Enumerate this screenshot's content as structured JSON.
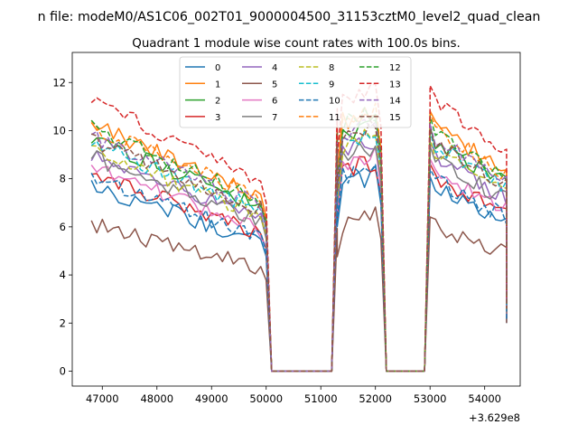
{
  "chart_data": {
    "type": "line",
    "suptitle": "n file: modeM0/AS1C06_002T01_9000004500_31153cztM0_level2_quad_clean",
    "title": "Quadrant 1 module wise count rates with 100.0s bins.",
    "xlabel": "",
    "ylabel": "",
    "x_offset_label": "+3.629e8",
    "xlim": [
      46450,
      54650
    ],
    "ylim": [
      -0.62,
      13.25
    ],
    "xticks": [
      47000,
      48000,
      49000,
      50000,
      51000,
      52000,
      53000,
      54000
    ],
    "yticks": [
      0,
      2,
      4,
      6,
      8,
      10,
      12
    ],
    "legend_position": "top-center",
    "legend_columns": 4,
    "grid": false,
    "segments": [
      {
        "start": 46800,
        "end": 49900,
        "decay": 0.3,
        "noise": 0.35
      },
      {
        "start": 50000,
        "end": 50100,
        "mode": "drop"
      },
      {
        "start": 50100,
        "end": 51200,
        "mode": "zero"
      },
      {
        "start": 51200,
        "end": 51300,
        "mode": "rise"
      },
      {
        "start": 51300,
        "end": 52000,
        "decay": -0.06,
        "noise": 0.45
      },
      {
        "start": 52100,
        "end": 52200,
        "mode": "drop"
      },
      {
        "start": 52200,
        "end": 52900,
        "mode": "zero"
      },
      {
        "start": 52900,
        "end": 53000,
        "mode": "rise"
      },
      {
        "start": 53000,
        "end": 54400,
        "decay": 0.2,
        "noise": 0.35
      }
    ],
    "series": [
      {
        "name": "0",
        "color": "#1f77b4",
        "dash": "solid",
        "level": 7.7,
        "end_value": 2.0
      },
      {
        "name": "1",
        "color": "#ff7f0e",
        "dash": "solid",
        "level": 10.3,
        "end_value": 2.3
      },
      {
        "name": "2",
        "color": "#2ca02c",
        "dash": "solid",
        "level": 9.7,
        "end_value": 2.5
      },
      {
        "name": "3",
        "color": "#d62728",
        "dash": "solid",
        "level": 8.2,
        "end_value": 2.2
      },
      {
        "name": "4",
        "color": "#9467bd",
        "dash": "solid",
        "level": 9.0,
        "end_value": 2.4
      },
      {
        "name": "5",
        "color": "#8c564b",
        "dash": "solid",
        "level": 6.1,
        "end_value": 2.0
      },
      {
        "name": "6",
        "color": "#e377c2",
        "dash": "solid",
        "level": 8.4,
        "end_value": 2.3
      },
      {
        "name": "7",
        "color": "#7f7f7f",
        "dash": "solid",
        "level": 8.9,
        "end_value": 2.4
      },
      {
        "name": "8",
        "color": "#bcbd22",
        "dash": "dashed",
        "level": 9.2,
        "end_value": 2.5
      },
      {
        "name": "9",
        "color": "#17becf",
        "dash": "dashed",
        "level": 9.5,
        "end_value": 2.6
      },
      {
        "name": "10",
        "color": "#1f77b4",
        "dash": "dashed",
        "level": 8.0,
        "end_value": 2.1
      },
      {
        "name": "11",
        "color": "#ff7f0e",
        "dash": "dashed",
        "level": 10.2,
        "end_value": 2.6
      },
      {
        "name": "12",
        "color": "#2ca02c",
        "dash": "dashed",
        "level": 10.1,
        "end_value": 2.7
      },
      {
        "name": "13",
        "color": "#d62728",
        "dash": "dashed",
        "level": 11.3,
        "end_value": 3.0
      },
      {
        "name": "14",
        "color": "#9467bd",
        "dash": "dashed",
        "level": 9.8,
        "end_value": 2.7
      },
      {
        "name": "15",
        "color": "#8c564b",
        "dash": "dashed",
        "level": 9.6,
        "end_value": 2.6
      }
    ]
  }
}
